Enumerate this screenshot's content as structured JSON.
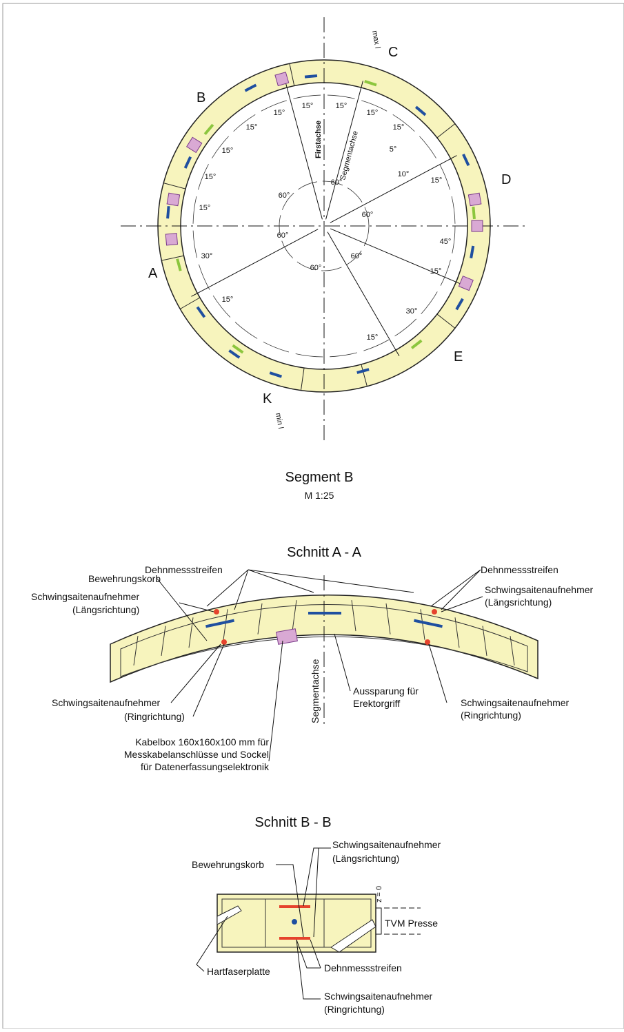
{
  "ring": {
    "max_label": "max l",
    "min_label": "min l",
    "segments": [
      "A",
      "B",
      "C",
      "D",
      "E",
      "K"
    ],
    "axes": [
      "Firstachse",
      "Segmentachse"
    ],
    "angles": [
      "15°",
      "15°",
      "15°",
      "15°",
      "15°",
      "15°",
      "15°",
      "15°",
      "15°",
      "5°",
      "10°",
      "15°",
      "45°",
      "15°",
      "30°",
      "15°",
      "30°",
      "15°",
      "60°",
      "60°",
      "60°",
      "60°",
      "60°",
      "60°"
    ]
  },
  "segment_title": "Segment B",
  "scale": "M 1:25",
  "section_aa": {
    "title": "Schnitt A - A",
    "strain_left": "Dehnmessstreifen",
    "strain_right": "Dehnmessstreifen",
    "cage": "Bewehrungskorb",
    "long_left": [
      "Schwingsaitenaufnehmer",
      "(Längsrichtung)"
    ],
    "long_right": [
      "Schwingsaitenaufnehmer",
      "(Längsrichtung)"
    ],
    "ring_left": [
      "Schwingsaitenaufnehmer",
      "(Ringrichtung)"
    ],
    "ring_right": [
      "Schwingsaitenaufnehmer",
      "(Ringrichtung)"
    ],
    "axis": "Segmentachse",
    "recess": [
      "Aussparung für",
      "Erektorgriff"
    ],
    "cablebox": [
      "Kabelbox 160x160x100 mm für",
      "Messkabelanschlüsse und Sockel",
      "für Datenerfassungselektronik"
    ]
  },
  "section_bb": {
    "title": "Schnitt B - B",
    "long": [
      "Schwingsaitenaufnehmer",
      "(Längsrichtung)"
    ],
    "cage": "Bewehrungskorb",
    "z": "z = 0",
    "press": "TVM Presse",
    "board": "Hartfaserplatte",
    "strain": "Dehnmessstreifen",
    "ring": [
      "Schwingsaitenaufnehmer",
      "(Ringrichtung)"
    ]
  }
}
